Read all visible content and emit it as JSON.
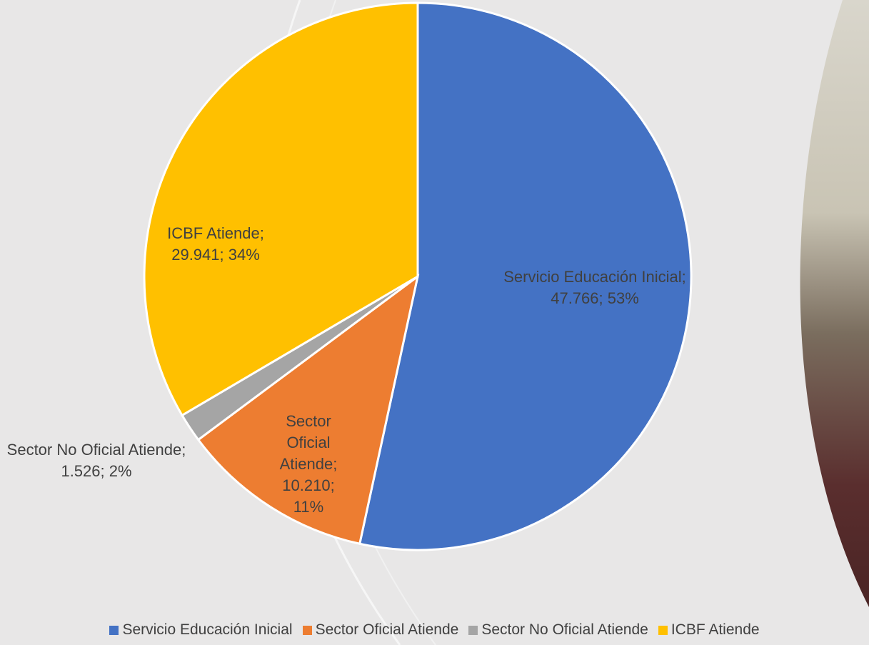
{
  "chart_data": {
    "type": "pie",
    "categories": [
      "Servicio Educación Inicial",
      "Sector Oficial Atiende",
      "Sector No Oficial Atiende",
      "ICBF Atiende"
    ],
    "values": [
      47766,
      10210,
      1526,
      29941
    ],
    "value_labels": [
      "Servicio Educación Inicial; 47.766; 53%",
      "Sector Oficial Atiende; 10.210; 11%",
      "Sector No Oficial Atiende; 1.526; 2%",
      "ICBF Atiende; 29.941; 34%"
    ],
    "colors": [
      "#4472c4",
      "#ed7d31",
      "#a5a5a5",
      "#ffc000"
    ],
    "legend": "bottom"
  }
}
